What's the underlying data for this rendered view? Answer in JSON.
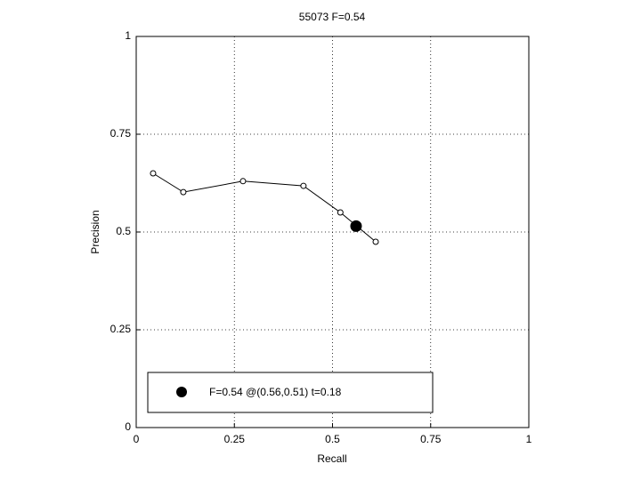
{
  "chart_data": {
    "type": "line",
    "title": "55073 F=0.54",
    "x_label": "Recall",
    "y_label": "Precision",
    "xlim": [
      0,
      1
    ],
    "ylim": [
      0,
      1
    ],
    "xticks": [
      0,
      0.25,
      0.5,
      0.75,
      1
    ],
    "yticks": [
      0,
      0.25,
      0.5,
      0.75,
      1
    ],
    "grid": true,
    "series": [
      {
        "x": [
          0.043,
          0.12,
          0.272,
          0.426,
          0.52,
          0.61
        ],
        "values": [
          0.65,
          0.602,
          0.63,
          0.618,
          0.55,
          0.475
        ],
        "color": "#000000"
      },
      {
        "name": "F=0.54 @(0.56,0.51) t=0.18",
        "x": [
          0.56
        ],
        "values": [
          0.515
        ],
        "color": "#000000"
      }
    ]
  }
}
